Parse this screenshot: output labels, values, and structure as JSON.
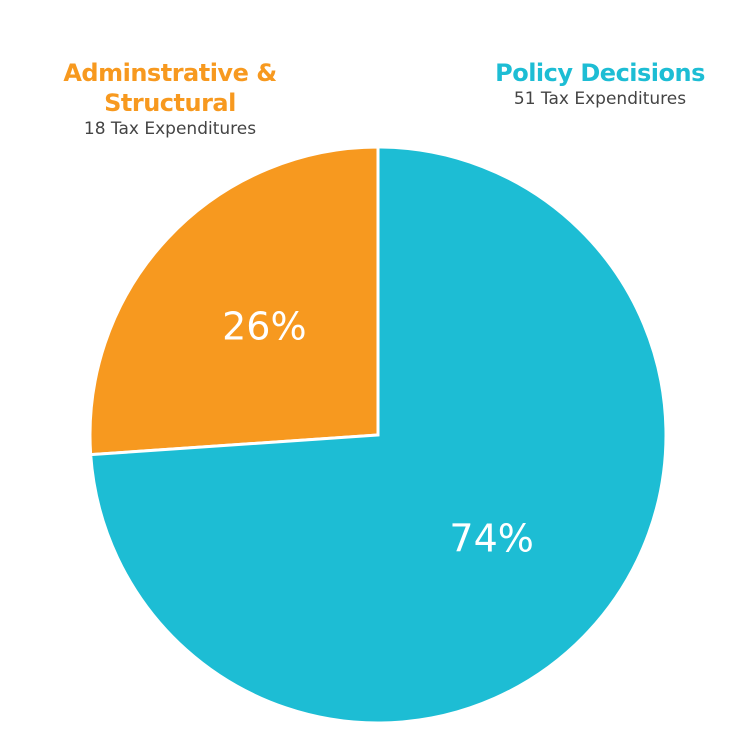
{
  "chart_data": {
    "type": "pie",
    "slices": [
      {
        "name": "Adminstrative & Structural",
        "detail": "18 Tax Expenditures",
        "value": 18,
        "percent_label": "26%",
        "color": "#f7991f"
      },
      {
        "name": "Policy Decisions",
        "detail": "51 Tax Expenditures",
        "value": 51,
        "percent_label": "74%",
        "color": "#1dbdd4"
      }
    ]
  }
}
